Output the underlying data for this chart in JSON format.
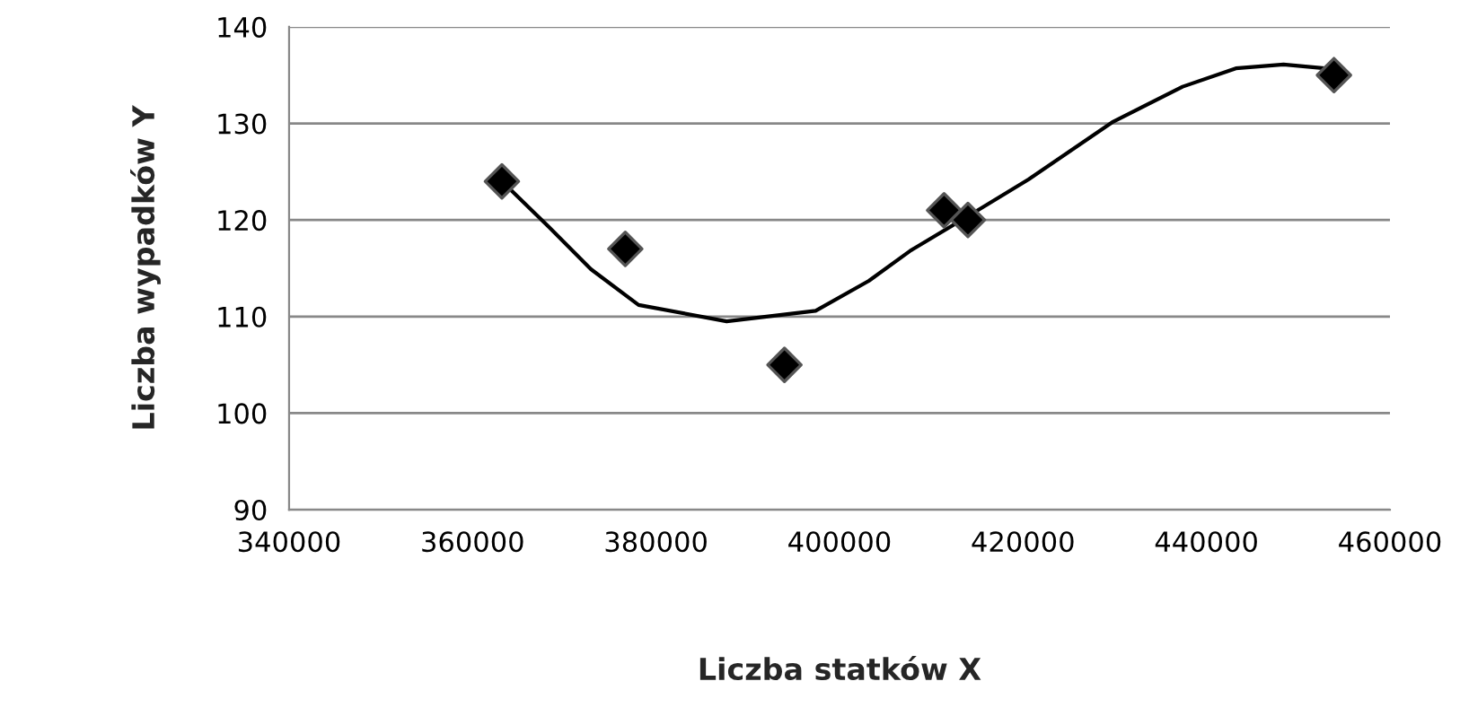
{
  "chart_data": {
    "type": "scatter",
    "xlabel": "Liczba statków X",
    "ylabel": "Liczba wypadków Y",
    "xlim": [
      340000,
      460000
    ],
    "xticks": [
      340000,
      360000,
      380000,
      400000,
      420000,
      440000,
      460000
    ],
    "ylim": [
      90,
      140
    ],
    "yticks": [
      90,
      100,
      110,
      120,
      130,
      140
    ],
    "grid": "y",
    "series": [
      {
        "color": "#000000",
        "marker": "diamond",
        "x": [
          363200,
          376650,
          394000,
          411400,
          414000,
          453900
        ],
        "values": [
          124,
          117,
          105,
          121,
          120,
          135
        ]
      },
      {
        "type": "line",
        "color": "#000000",
        "marker": "none",
        "line_style": "solid",
        "x": [
          363200,
          368400,
          372900,
          378100,
          387700,
          397400,
          403200,
          407700,
          414200,
          420600,
          429700,
          437400,
          443200,
          448400,
          452900,
          453900
        ],
        "values": [
          124,
          119.2,
          114.9,
          111.2,
          109.5,
          110.6,
          113.7,
          116.8,
          120.5,
          124.2,
          130.1,
          133.8,
          135.7,
          136.1,
          135.7,
          135.4
        ]
      }
    ]
  }
}
